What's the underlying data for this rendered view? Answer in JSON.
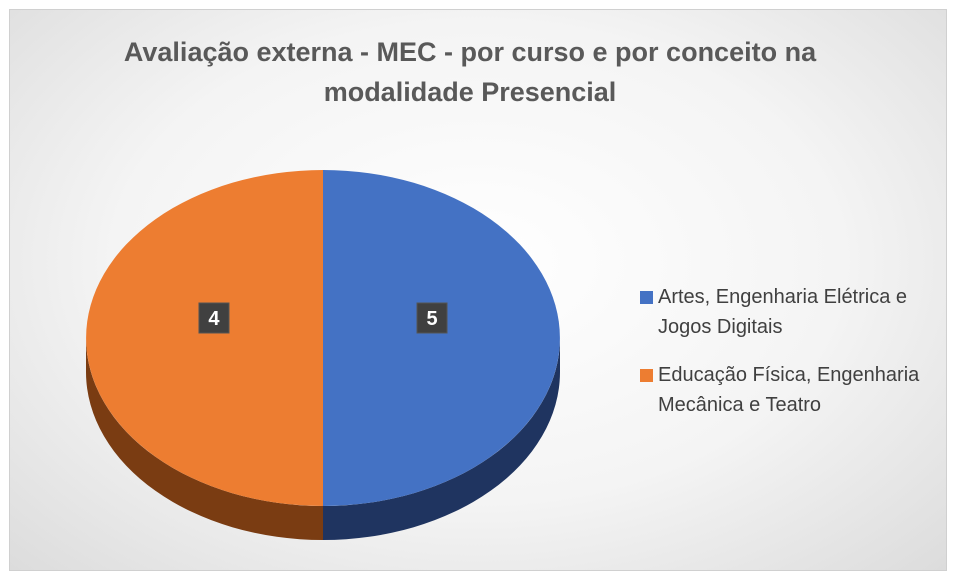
{
  "chart_data": {
    "type": "pie3d",
    "title": "Avaliação externa - MEC  - por curso e  por conceito na modalidade Presencial",
    "categories": [
      "Artes, Engenharia Elétrica e Jogos Digitais",
      "Educação Física, Engenharia Mecânica e Teatro"
    ],
    "values": [
      50,
      50
    ],
    "grade_labels": [
      "5",
      "4"
    ],
    "colors": [
      "#4472c4",
      "#ed7d31"
    ],
    "side_colors": [
      "#1f3460",
      "#7a3c12"
    ],
    "legend": "right"
  }
}
